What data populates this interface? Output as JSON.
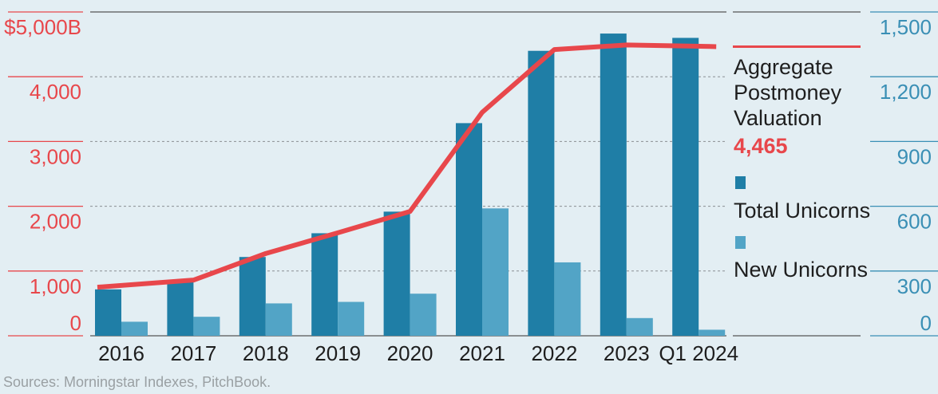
{
  "chart_data": {
    "type": "bar",
    "categories": [
      "2016",
      "2017",
      "2018",
      "2019",
      "2020",
      "2021",
      "2022",
      "2023",
      "Q1 2024"
    ],
    "series": [
      {
        "name": "Total Unicorns",
        "axis": "right",
        "kind": "bar",
        "color": "#1f7ea6",
        "values": [
          215,
          255,
          365,
          475,
          575,
          985,
          1320,
          1400,
          1380
        ]
      },
      {
        "name": "New Unicorns",
        "axis": "right",
        "kind": "bar",
        "color": "#52a4c6",
        "values": [
          65,
          88,
          150,
          157,
          195,
          590,
          340,
          82,
          28
        ]
      },
      {
        "name": "Aggregate Postmoney Valuation",
        "axis": "left",
        "kind": "line",
        "color": "#e8474b",
        "values": [
          750,
          860,
          1270,
          1590,
          1920,
          3450,
          4420,
          4490,
          4465
        ]
      }
    ],
    "left_axis": {
      "ticks": [
        "$5,000B",
        "4,000",
        "3,000",
        "2,000",
        "1,000",
        "0"
      ],
      "ylim": [
        0,
        5000
      ]
    },
    "right_axis": {
      "ticks": [
        "1,500",
        "1,200",
        "900",
        "600",
        "300",
        "0"
      ],
      "ylim": [
        0,
        1500
      ]
    },
    "legend": {
      "valuation_label_lines": [
        "Aggregate",
        "Postmoney",
        "Valuation"
      ],
      "valuation_value": "4,465",
      "total_label": "Total Unicorns",
      "new_label": "New Unicorns"
    },
    "grid": true,
    "colors": {
      "left_axis": "#e8474b",
      "right_axis": "#3a8fb5",
      "background": "#e3eef3"
    }
  },
  "source": "Sources: Morningstar Indexes, PitchBook."
}
